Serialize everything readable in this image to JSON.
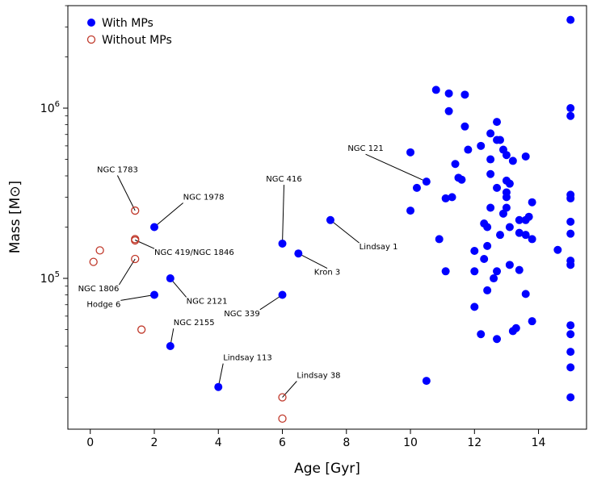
{
  "chart_data": {
    "type": "scatter",
    "xlabel": "Age [Gyr]",
    "ylabel": "Mass [M⊙]",
    "xlim": [
      -0.7,
      15.5
    ],
    "ylim": [
      13000,
      4000000
    ],
    "yscale": "log",
    "x_ticks": [
      0,
      2,
      4,
      6,
      8,
      10,
      12,
      14
    ],
    "y_ticks": [
      {
        "value": 100000,
        "label": "10^5"
      },
      {
        "value": 1000000,
        "label": "10^6"
      }
    ],
    "legend": {
      "position": "top-left"
    },
    "series": [
      {
        "name": "With MPs",
        "color": "#0000ff",
        "marker": "filled-circle",
        "points": [
          [
            2.0,
            200000
          ],
          [
            2.0,
            80000
          ],
          [
            2.5,
            100000
          ],
          [
            2.5,
            40000
          ],
          [
            4.0,
            23000
          ],
          [
            6.0,
            160000
          ],
          [
            6.0,
            80000
          ],
          [
            6.5,
            140000
          ],
          [
            7.5,
            220000
          ],
          [
            10.0,
            550000
          ],
          [
            10.0,
            250000
          ],
          [
            10.2,
            340000
          ],
          [
            10.5,
            370000
          ],
          [
            10.5,
            25000
          ],
          [
            10.8,
            1280000
          ],
          [
            10.9,
            170000
          ],
          [
            11.1,
            110000
          ],
          [
            11.1,
            295000
          ],
          [
            11.2,
            1220000
          ],
          [
            11.2,
            960000
          ],
          [
            11.3,
            300000
          ],
          [
            11.4,
            470000
          ],
          [
            11.5,
            390000
          ],
          [
            11.6,
            380000
          ],
          [
            11.7,
            1200000
          ],
          [
            11.7,
            780000
          ],
          [
            11.8,
            570000
          ],
          [
            12.0,
            145000
          ],
          [
            12.0,
            110000
          ],
          [
            12.0,
            68000
          ],
          [
            12.2,
            600000
          ],
          [
            12.2,
            47000
          ],
          [
            12.3,
            210000
          ],
          [
            12.3,
            130000
          ],
          [
            12.4,
            200000
          ],
          [
            12.4,
            155000
          ],
          [
            12.4,
            85000
          ],
          [
            12.5,
            710000
          ],
          [
            12.5,
            500000
          ],
          [
            12.5,
            410000
          ],
          [
            12.5,
            260000
          ],
          [
            12.6,
            100000
          ],
          [
            12.7,
            830000
          ],
          [
            12.7,
            650000
          ],
          [
            12.7,
            340000
          ],
          [
            12.7,
            110000
          ],
          [
            12.7,
            44000
          ],
          [
            12.8,
            650000
          ],
          [
            12.8,
            180000
          ],
          [
            12.9,
            570000
          ],
          [
            12.9,
            240000
          ],
          [
            13.0,
            530000
          ],
          [
            13.0,
            375000
          ],
          [
            13.0,
            320000
          ],
          [
            13.0,
            300000
          ],
          [
            13.0,
            260000
          ],
          [
            13.1,
            360000
          ],
          [
            13.1,
            200000
          ],
          [
            13.1,
            120000
          ],
          [
            13.2,
            490000
          ],
          [
            13.2,
            49000
          ],
          [
            13.3,
            51000
          ],
          [
            13.4,
            220000
          ],
          [
            13.4,
            185000
          ],
          [
            13.4,
            112000
          ],
          [
            13.6,
            520000
          ],
          [
            13.6,
            220000
          ],
          [
            13.6,
            180000
          ],
          [
            13.6,
            81000
          ],
          [
            13.7,
            230000
          ],
          [
            13.8,
            280000
          ],
          [
            13.8,
            170000
          ],
          [
            13.8,
            56000
          ],
          [
            14.6,
            147000
          ],
          [
            15.0,
            3300000
          ],
          [
            15.0,
            1000000
          ],
          [
            15.0,
            900000
          ],
          [
            15.0,
            310000
          ],
          [
            15.0,
            295000
          ],
          [
            15.0,
            215000
          ],
          [
            15.0,
            183000
          ],
          [
            15.0,
            127000
          ],
          [
            15.0,
            120000
          ],
          [
            15.0,
            53000
          ],
          [
            15.0,
            47000
          ],
          [
            15.0,
            37000
          ],
          [
            15.0,
            30000
          ],
          [
            15.0,
            20000
          ]
        ]
      },
      {
        "name": "Without MPs",
        "color": "#c0392b",
        "marker": "open-circle",
        "points": [
          [
            0.1,
            125000
          ],
          [
            0.3,
            146000
          ],
          [
            1.4,
            250000
          ],
          [
            1.4,
            170000
          ],
          [
            1.4,
            167000
          ],
          [
            1.4,
            130000
          ],
          [
            1.6,
            50000
          ],
          [
            6.0,
            20000
          ],
          [
            6.0,
            15000
          ]
        ]
      }
    ],
    "annotations": [
      {
        "text": "NGC 1783",
        "point": [
          1.4,
          250000
        ],
        "label_pos": [
          0.85,
          420000
        ],
        "anchor": "middle"
      },
      {
        "text": "NGC 1978",
        "point": [
          2.0,
          200000
        ],
        "label_pos": [
          2.9,
          290000
        ],
        "anchor": "start"
      },
      {
        "text": "NGC 419/NGC 1846",
        "point": [
          1.4,
          168000
        ],
        "label_pos": [
          2.0,
          137000
        ],
        "anchor": "start"
      },
      {
        "text": "NGC 1806",
        "point": [
          1.4,
          130000
        ],
        "label_pos": [
          0.9,
          84000
        ],
        "anchor": "end"
      },
      {
        "text": "Hodge 6",
        "point": [
          2.0,
          80000
        ],
        "label_pos": [
          0.95,
          68000
        ],
        "anchor": "end"
      },
      {
        "text": "NGC 2121",
        "point": [
          2.5,
          100000
        ],
        "label_pos": [
          3.0,
          71000
        ],
        "anchor": "start"
      },
      {
        "text": "NGC 2155",
        "point": [
          2.5,
          40000
        ],
        "label_pos": [
          2.6,
          53000
        ],
        "anchor": "start"
      },
      {
        "text": "NGC 339",
        "point": [
          6.0,
          80000
        ],
        "label_pos": [
          5.3,
          60000
        ],
        "anchor": "end"
      },
      {
        "text": "Lindsay 113",
        "point": [
          4.0,
          23000
        ],
        "label_pos": [
          4.15,
          33000
        ],
        "anchor": "start"
      },
      {
        "text": "Lindsay 38",
        "point": [
          6.0,
          20000
        ],
        "label_pos": [
          6.45,
          26000
        ],
        "anchor": "start"
      },
      {
        "text": "NGC 416",
        "point": [
          6.0,
          160000
        ],
        "label_pos": [
          6.05,
          370000
        ],
        "anchor": "middle"
      },
      {
        "text": "Kron 3",
        "point": [
          6.5,
          140000
        ],
        "label_pos": [
          7.4,
          105000
        ],
        "anchor": "middle"
      },
      {
        "text": "Lindsay 1",
        "point": [
          7.5,
          220000
        ],
        "label_pos": [
          8.4,
          148000
        ],
        "anchor": "start"
      },
      {
        "text": "NGC 121",
        "point": [
          10.5,
          370000
        ],
        "label_pos": [
          8.6,
          560000
        ],
        "anchor": "middle"
      }
    ]
  }
}
